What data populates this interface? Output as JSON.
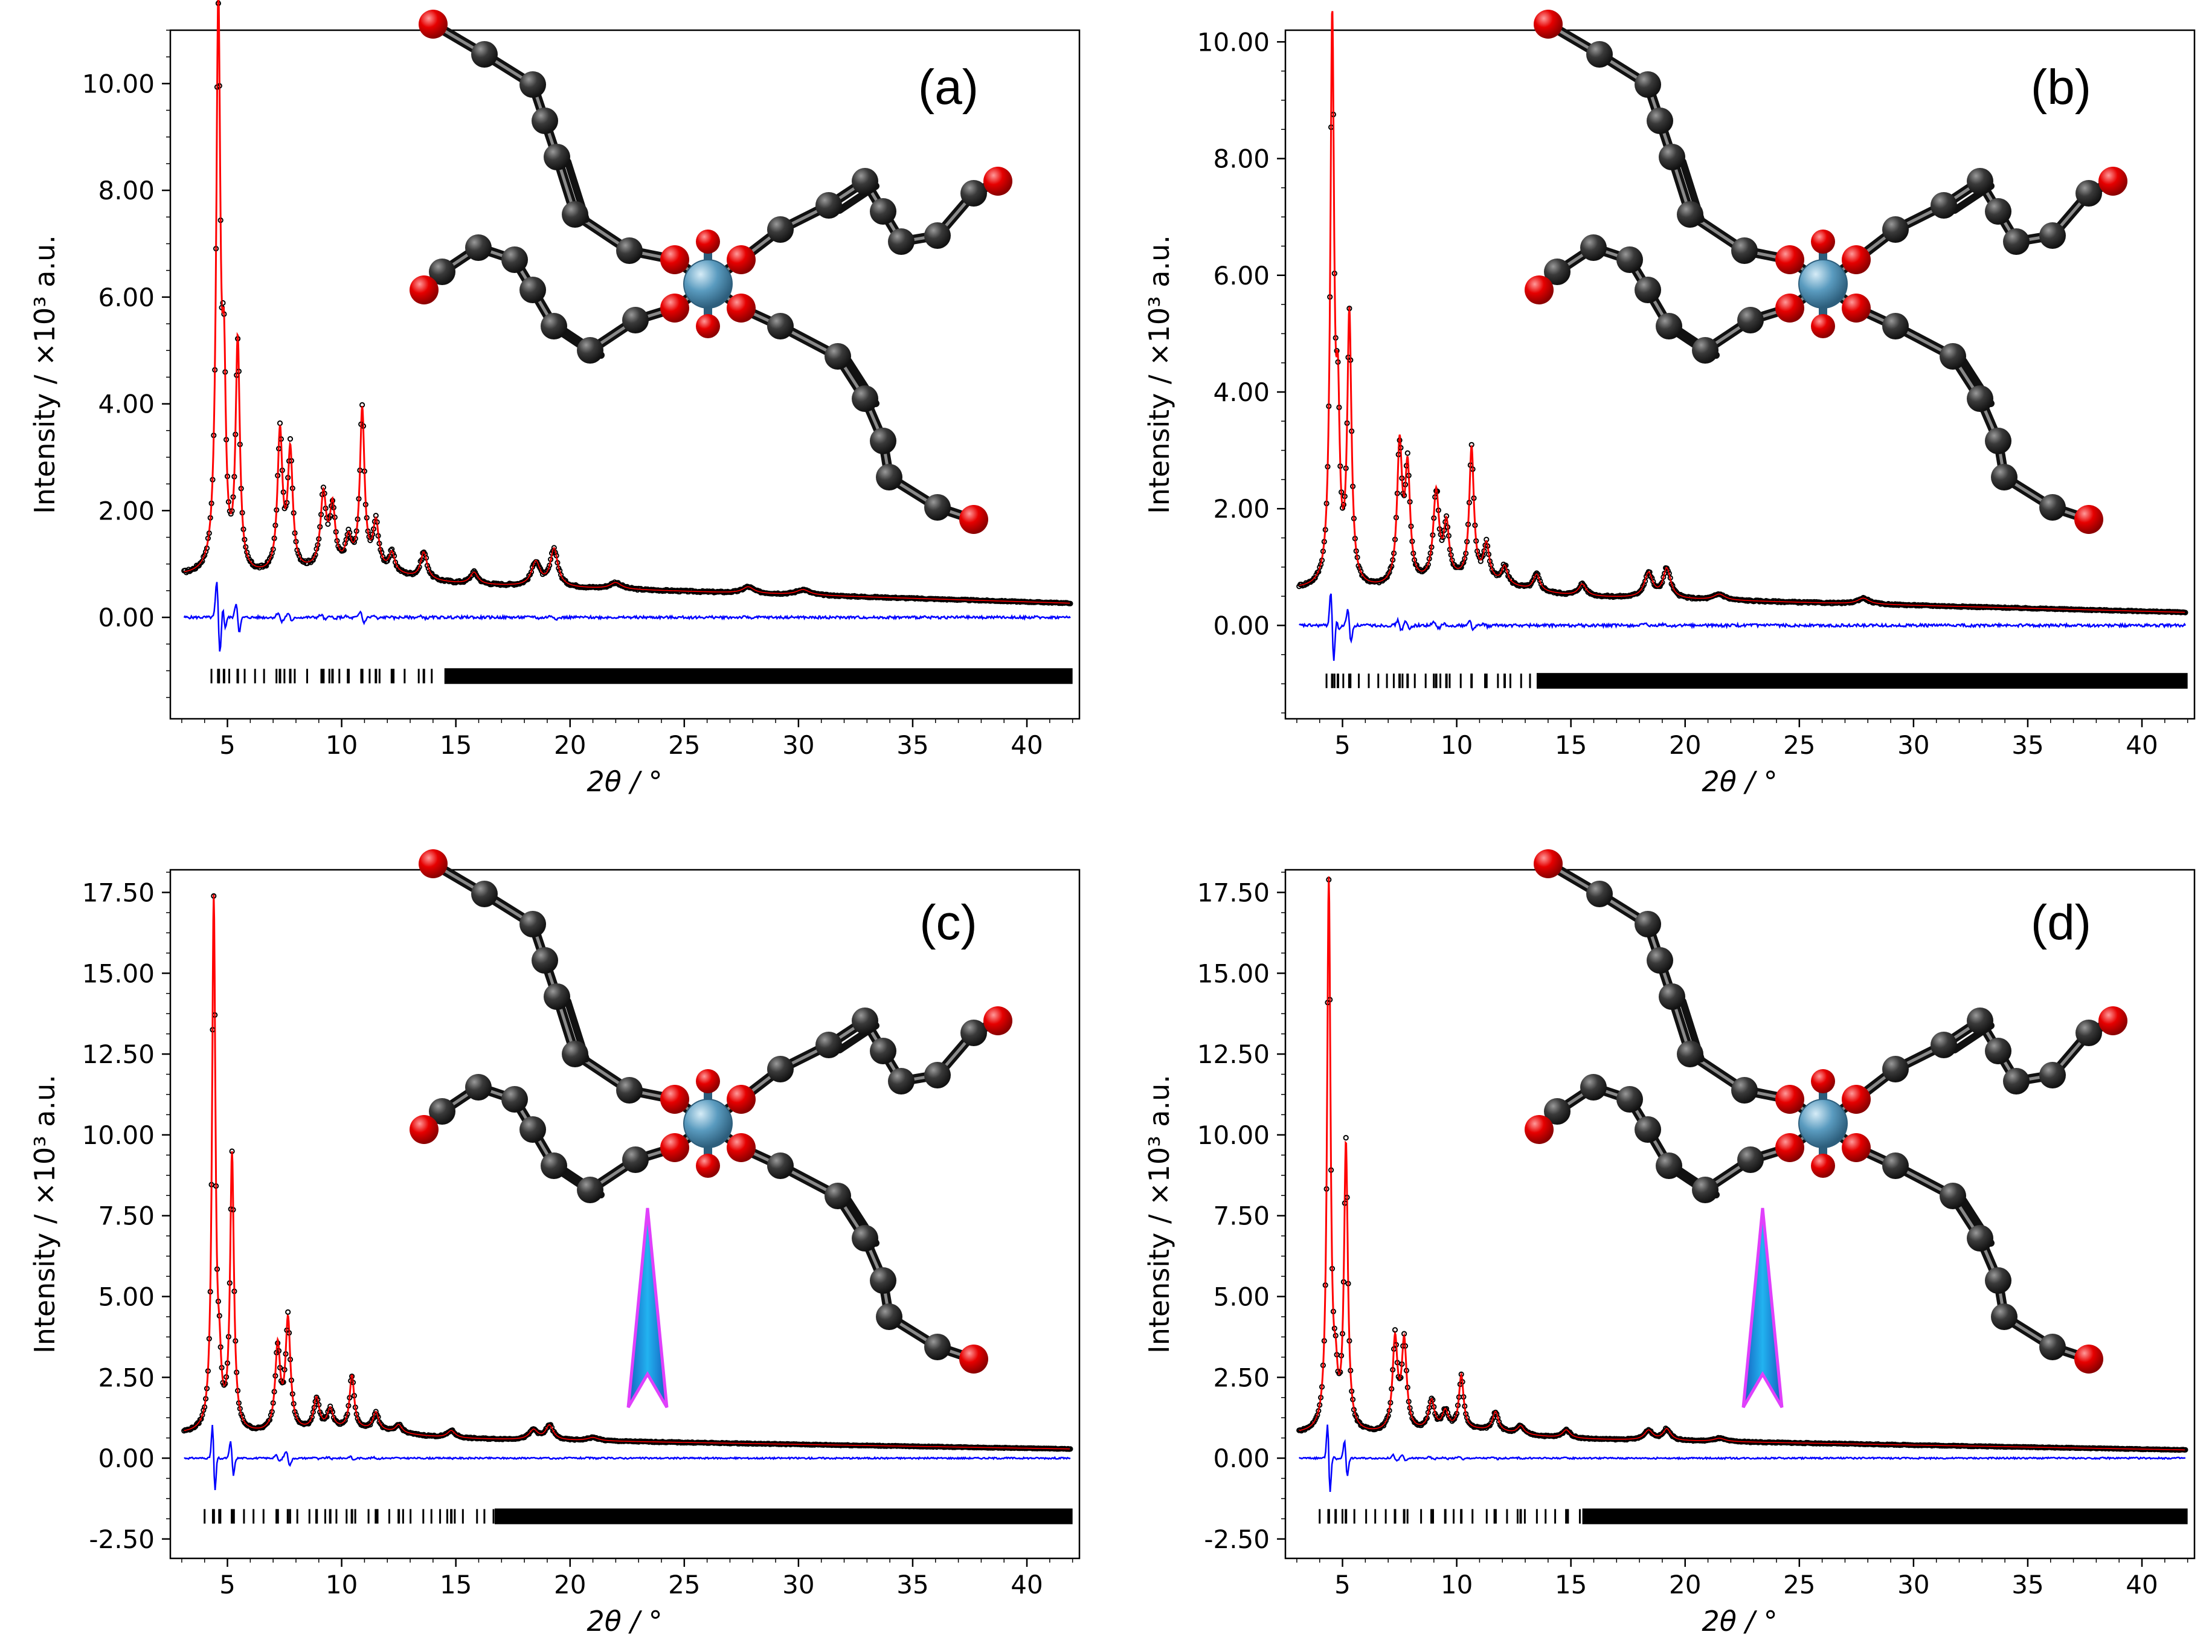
{
  "figure": {
    "description_units": "2theta in degrees; intensity in x10^3 a.u."
  },
  "chart_data": [
    {
      "type": "line",
      "panel": "(a)",
      "xlabel": "2θ / °",
      "ylabel": "Intensity / ×10³ a.u.",
      "xlim": [
        2.5,
        42.3
      ],
      "ylim": [
        -1.9,
        11.0
      ],
      "xticks": [
        5,
        10,
        15,
        20,
        25,
        30,
        35,
        40
      ],
      "yticks": [
        0.0,
        2.0,
        4.0,
        6.0,
        8.0,
        10.0
      ],
      "ytick_labels": [
        "0.00",
        "2.00",
        "4.00",
        "6.00",
        "8.00",
        "10.00"
      ],
      "xtick_labels": [
        "5",
        "10",
        "15",
        "20",
        "25",
        "30",
        "35",
        "40"
      ],
      "background": {
        "start": 0.78,
        "end": 0.26
      },
      "peaks": [
        [
          4.6,
          10.6,
          0.11
        ],
        [
          4.85,
          3.1,
          0.09
        ],
        [
          5.45,
          4.3,
          0.11
        ],
        [
          7.3,
          2.6,
          0.13
        ],
        [
          7.75,
          2.2,
          0.13
        ],
        [
          9.2,
          1.35,
          0.15
        ],
        [
          9.6,
          1.1,
          0.14
        ],
        [
          10.3,
          0.5,
          0.15
        ],
        [
          10.9,
          2.95,
          0.12
        ],
        [
          11.5,
          0.85,
          0.15
        ],
        [
          12.2,
          0.35,
          0.15
        ],
        [
          13.6,
          0.5,
          0.17
        ],
        [
          15.8,
          0.22,
          0.2
        ],
        [
          18.5,
          0.45,
          0.22
        ],
        [
          19.3,
          0.7,
          0.2
        ],
        [
          22.0,
          0.12,
          0.3
        ],
        [
          27.8,
          0.12,
          0.3
        ],
        [
          30.2,
          0.1,
          0.35
        ]
      ],
      "difference_offset": 0.0,
      "reflections": {
        "y": -1.1,
        "start": 4.3,
        "dense_from": 14.5,
        "end": 42.0
      },
      "series": [
        {
          "name": "observed",
          "color": "#000000"
        },
        {
          "name": "calculated",
          "color": "#ff0000"
        },
        {
          "name": "difference",
          "color": "#0000ff"
        },
        {
          "name": "reflection positions",
          "color": "#000000"
        }
      ],
      "features": []
    },
    {
      "type": "line",
      "panel": "(b)",
      "xlabel": "2θ / °",
      "ylabel": "Intensity / ×10³ a.u.",
      "xlim": [
        2.5,
        42.3
      ],
      "ylim": [
        -1.6,
        10.2
      ],
      "xticks": [
        5,
        10,
        15,
        20,
        25,
        30,
        35,
        40
      ],
      "yticks": [
        0.0,
        2.0,
        4.0,
        6.0,
        8.0,
        10.0
      ],
      "ytick_labels": [
        "0.00",
        "2.00",
        "4.00",
        "6.00",
        "8.00",
        "10.00"
      ],
      "xtick_labels": [
        "5",
        "10",
        "15",
        "20",
        "25",
        "30",
        "35",
        "40"
      ],
      "background": {
        "start": 0.62,
        "end": 0.22
      },
      "peaks": [
        [
          4.55,
          9.6,
          0.1
        ],
        [
          4.8,
          2.5,
          0.09
        ],
        [
          5.3,
          4.6,
          0.11
        ],
        [
          7.5,
          2.35,
          0.13
        ],
        [
          7.85,
          1.9,
          0.13
        ],
        [
          9.1,
          1.5,
          0.15
        ],
        [
          9.55,
          0.9,
          0.14
        ],
        [
          10.65,
          2.25,
          0.12
        ],
        [
          11.3,
          0.6,
          0.15
        ],
        [
          12.1,
          0.3,
          0.15
        ],
        [
          13.5,
          0.28,
          0.17
        ],
        [
          15.5,
          0.2,
          0.2
        ],
        [
          18.4,
          0.42,
          0.22
        ],
        [
          19.2,
          0.5,
          0.2
        ],
        [
          21.5,
          0.1,
          0.3
        ],
        [
          27.8,
          0.1,
          0.3
        ]
      ],
      "difference_offset": 0.0,
      "reflections": {
        "y": -0.95,
        "start": 4.3,
        "dense_from": 13.5,
        "end": 42.0
      },
      "series": [
        {
          "name": "observed",
          "color": "#000000"
        },
        {
          "name": "calculated",
          "color": "#ff0000"
        },
        {
          "name": "difference",
          "color": "#0000ff"
        },
        {
          "name": "reflection positions",
          "color": "#000000"
        }
      ],
      "features": []
    },
    {
      "type": "line",
      "panel": "(c)",
      "xlabel": "2θ / °",
      "ylabel": "Intensity / ×10³ a.u.",
      "xlim": [
        2.5,
        42.3
      ],
      "ylim": [
        -3.1,
        18.2
      ],
      "xticks": [
        5,
        10,
        15,
        20,
        25,
        30,
        35,
        40
      ],
      "yticks": [
        -2.5,
        0.0,
        2.5,
        5.0,
        7.5,
        10.0,
        12.5,
        15.0,
        17.5
      ],
      "ytick_labels": [
        "-2.50",
        "0.00",
        "2.50",
        "5.00",
        "7.50",
        "10.00",
        "12.50",
        "15.00",
        "17.50"
      ],
      "xtick_labels": [
        "5",
        "10",
        "15",
        "20",
        "25",
        "30",
        "35",
        "40"
      ],
      "background": {
        "start": 0.75,
        "end": 0.28
      },
      "peaks": [
        [
          4.4,
          16.4,
          0.09
        ],
        [
          4.65,
          1.4,
          0.09
        ],
        [
          5.2,
          8.5,
          0.1
        ],
        [
          7.2,
          2.6,
          0.13
        ],
        [
          7.65,
          3.4,
          0.13
        ],
        [
          8.9,
          0.95,
          0.15
        ],
        [
          9.5,
          0.6,
          0.15
        ],
        [
          10.45,
          1.65,
          0.12
        ],
        [
          11.5,
          0.55,
          0.15
        ],
        [
          12.5,
          0.25,
          0.17
        ],
        [
          14.8,
          0.22,
          0.2
        ],
        [
          18.4,
          0.3,
          0.22
        ],
        [
          19.1,
          0.45,
          0.2
        ],
        [
          21.0,
          0.1,
          0.3
        ]
      ],
      "difference_offset": 0.0,
      "reflections": {
        "y": -1.8,
        "start": 4.0,
        "dense_from": 16.7,
        "end": 42.0
      },
      "series": [
        {
          "name": "observed",
          "color": "#000000"
        },
        {
          "name": "calculated",
          "color": "#ff0000"
        },
        {
          "name": "difference",
          "color": "#0000ff"
        },
        {
          "name": "reflection positions",
          "color": "#000000"
        }
      ],
      "features": [
        "arrow"
      ]
    },
    {
      "type": "line",
      "panel": "(d)",
      "xlabel": "2θ / °",
      "ylabel": "Intensity / ×10³ a.u.",
      "xlim": [
        2.5,
        42.3
      ],
      "ylim": [
        -3.1,
        18.2
      ],
      "xticks": [
        5,
        10,
        15,
        20,
        25,
        30,
        35,
        40
      ],
      "yticks": [
        -2.5,
        0.0,
        2.5,
        5.0,
        7.5,
        10.0,
        12.5,
        15.0,
        17.5
      ],
      "ytick_labels": [
        "-2.50",
        "0.00",
        "2.50",
        "5.00",
        "7.50",
        "10.00",
        "12.50",
        "15.00",
        "17.50"
      ],
      "xtick_labels": [
        "5",
        "10",
        "15",
        "20",
        "25",
        "30",
        "35",
        "40"
      ],
      "background": {
        "start": 0.75,
        "end": 0.25
      },
      "peaks": [
        [
          4.4,
          17.0,
          0.09
        ],
        [
          4.7,
          1.2,
          0.09
        ],
        [
          5.15,
          8.8,
          0.1
        ],
        [
          7.3,
          2.8,
          0.13
        ],
        [
          7.7,
          2.7,
          0.13
        ],
        [
          8.9,
          0.9,
          0.15
        ],
        [
          9.5,
          0.55,
          0.15
        ],
        [
          10.2,
          1.65,
          0.12
        ],
        [
          11.7,
          0.6,
          0.15
        ],
        [
          12.8,
          0.25,
          0.17
        ],
        [
          14.8,
          0.25,
          0.2
        ],
        [
          18.4,
          0.3,
          0.22
        ],
        [
          19.2,
          0.35,
          0.2
        ],
        [
          21.5,
          0.1,
          0.3
        ]
      ],
      "difference_offset": 0.0,
      "reflections": {
        "y": -1.8,
        "start": 4.0,
        "dense_from": 15.5,
        "end": 42.0
      },
      "series": [
        {
          "name": "observed",
          "color": "#000000"
        },
        {
          "name": "calculated",
          "color": "#ff0000"
        },
        {
          "name": "difference",
          "color": "#0000ff"
        },
        {
          "name": "reflection positions",
          "color": "#000000"
        }
      ],
      "features": [
        "arrow"
      ]
    }
  ],
  "colors": {
    "observed": "#000000",
    "calculated": "#ff0000",
    "difference": "#0000ff",
    "carbon": "#333333",
    "oxygen": "#e60000",
    "metal": "#5a9bbf",
    "arrow_fill": "#1a8fe0",
    "arrow_outline": "#e040fb"
  }
}
